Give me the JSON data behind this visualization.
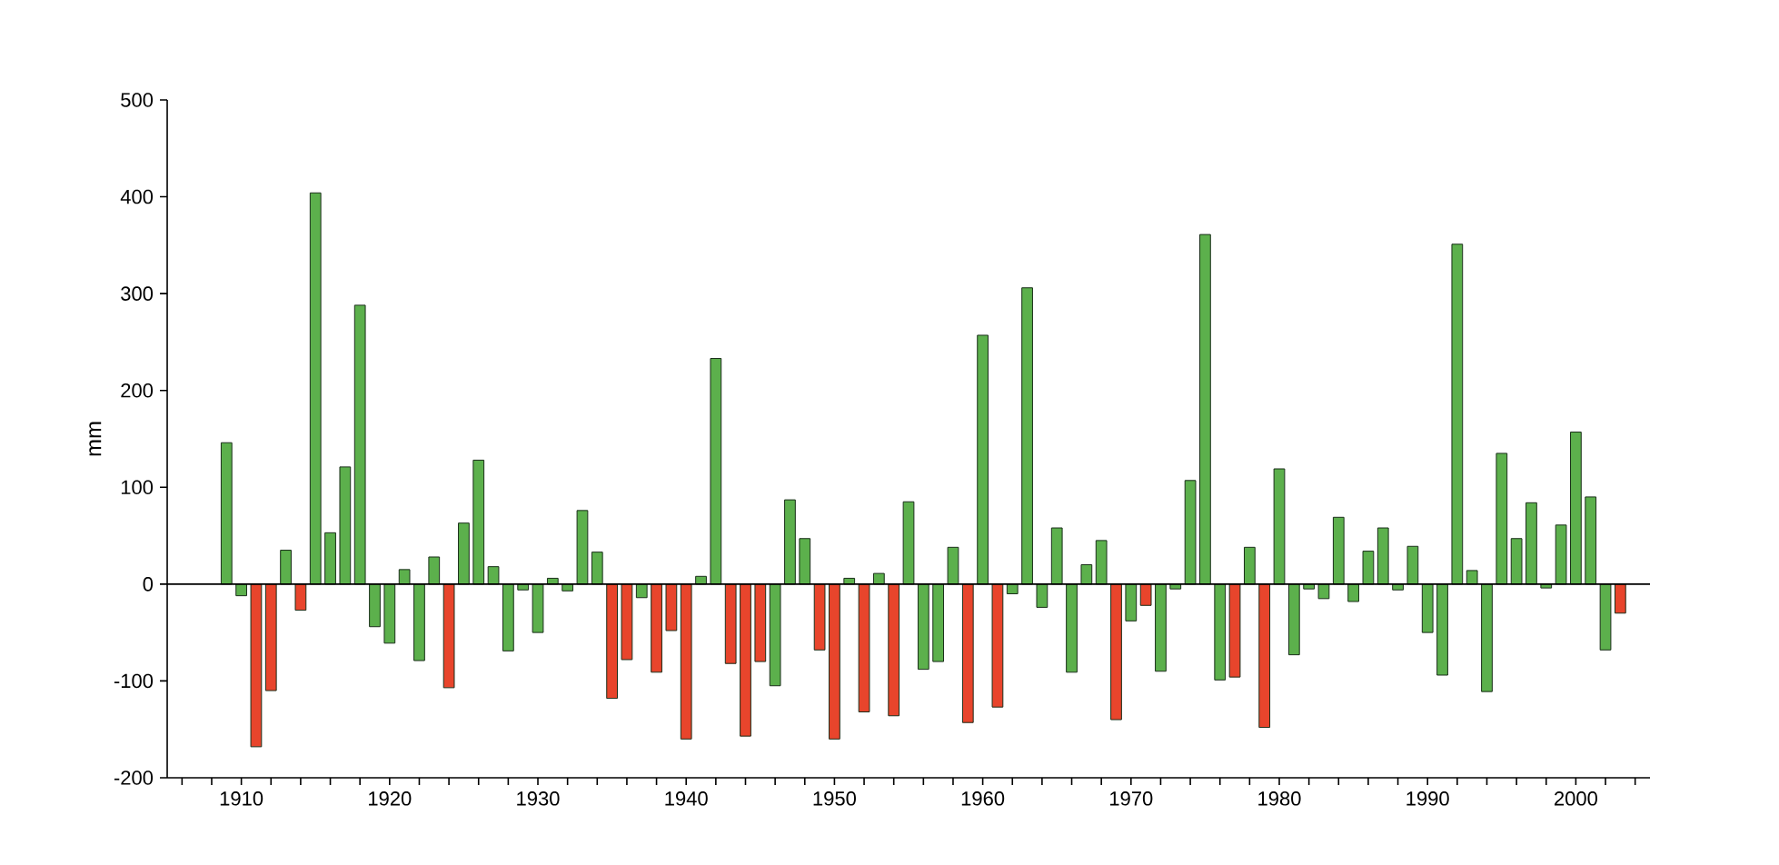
{
  "chart_data": {
    "type": "bar",
    "ylabel": "mm",
    "x": [
      1909,
      1910,
      1911,
      1912,
      1913,
      1914,
      1915,
      1916,
      1917,
      1918,
      1919,
      1920,
      1921,
      1922,
      1923,
      1924,
      1925,
      1926,
      1927,
      1928,
      1929,
      1930,
      1931,
      1932,
      1933,
      1934,
      1935,
      1936,
      1937,
      1938,
      1939,
      1940,
      1941,
      1942,
      1943,
      1944,
      1945,
      1946,
      1947,
      1948,
      1949,
      1950,
      1951,
      1952,
      1953,
      1954,
      1955,
      1956,
      1957,
      1958,
      1959,
      1960,
      1961,
      1962,
      1963,
      1964,
      1965,
      1966,
      1967,
      1968,
      1969,
      1970,
      1971,
      1972,
      1973,
      1974,
      1975,
      1976,
      1977,
      1978,
      1979,
      1980,
      1981,
      1982,
      1983,
      1984,
      1985,
      1986,
      1987,
      1988,
      1989,
      1990,
      1991,
      1992,
      1993,
      1994,
      1995,
      1996,
      1997,
      1998,
      1999,
      2000,
      2001,
      2002,
      2003
    ],
    "values": [
      146,
      -12,
      -168,
      -110,
      35,
      -27,
      404,
      53,
      121,
      288,
      -44,
      -61,
      15,
      -79,
      28,
      -107,
      63,
      128,
      18,
      -69,
      -6,
      -50,
      6,
      -7,
      76,
      33,
      -118,
      -78,
      -14,
      -91,
      -48,
      -160,
      8,
      233,
      -82,
      -157,
      -80,
      -105,
      87,
      47,
      -68,
      -160,
      6,
      -132,
      11,
      -136,
      85,
      -88,
      -80,
      38,
      -143,
      257,
      -127,
      -10,
      306,
      -24,
      58,
      -91,
      20,
      45,
      -140,
      -38,
      -22,
      -90,
      -5,
      107,
      361,
      -99,
      -96,
      38,
      -148,
      119,
      -73,
      -5,
      -15,
      69,
      -18,
      34,
      58,
      -6,
      39,
      -50,
      -94,
      351,
      14,
      -111,
      135,
      47,
      84,
      -4,
      61,
      157,
      90,
      -68,
      -30
    ],
    "colors": [
      "#5cb04c",
      "#5cb04c",
      "#e8452c",
      "#e8452c",
      "#5cb04c",
      "#e8452c",
      "#5cb04c",
      "#5cb04c",
      "#5cb04c",
      "#5cb04c",
      "#5cb04c",
      "#5cb04c",
      "#5cb04c",
      "#5cb04c",
      "#5cb04c",
      "#e8452c",
      "#5cb04c",
      "#5cb04c",
      "#5cb04c",
      "#5cb04c",
      "#5cb04c",
      "#5cb04c",
      "#5cb04c",
      "#5cb04c",
      "#5cb04c",
      "#5cb04c",
      "#e8452c",
      "#e8452c",
      "#5cb04c",
      "#e8452c",
      "#e8452c",
      "#e8452c",
      "#5cb04c",
      "#5cb04c",
      "#e8452c",
      "#e8452c",
      "#e8452c",
      "#5cb04c",
      "#5cb04c",
      "#5cb04c",
      "#e8452c",
      "#e8452c",
      "#5cb04c",
      "#e8452c",
      "#5cb04c",
      "#e8452c",
      "#5cb04c",
      "#5cb04c",
      "#5cb04c",
      "#5cb04c",
      "#e8452c",
      "#5cb04c",
      "#e8452c",
      "#5cb04c",
      "#5cb04c",
      "#5cb04c",
      "#5cb04c",
      "#5cb04c",
      "#5cb04c",
      "#5cb04c",
      "#e8452c",
      "#5cb04c",
      "#e8452c",
      "#5cb04c",
      "#5cb04c",
      "#5cb04c",
      "#5cb04c",
      "#5cb04c",
      "#e8452c",
      "#5cb04c",
      "#e8452c",
      "#5cb04c",
      "#5cb04c",
      "#5cb04c",
      "#5cb04c",
      "#5cb04c",
      "#5cb04c",
      "#5cb04c",
      "#5cb04c",
      "#5cb04c",
      "#5cb04c",
      "#5cb04c",
      "#5cb04c",
      "#5cb04c",
      "#5cb04c",
      "#5cb04c",
      "#5cb04c",
      "#5cb04c",
      "#5cb04c",
      "#5cb04c",
      "#5cb04c",
      "#5cb04c",
      "#5cb04c",
      "#5cb04c",
      "#e8452c"
    ],
    "xlim": [
      1905,
      2005
    ],
    "xticks": [
      {
        "value": 1906,
        "label": null
      },
      {
        "value": 1908,
        "label": null
      },
      1910,
      {
        "value": 1912,
        "label": null
      },
      {
        "value": 1914,
        "label": null
      },
      {
        "value": 1916,
        "label": null
      },
      {
        "value": 1918,
        "label": null
      },
      1920,
      {
        "value": 1922,
        "label": null
      },
      {
        "value": 1924,
        "label": null
      },
      {
        "value": 1926,
        "label": null
      },
      {
        "value": 1928,
        "label": null
      },
      1930,
      {
        "value": 1932,
        "label": null
      },
      {
        "value": 1934,
        "label": null
      },
      {
        "value": 1936,
        "label": null
      },
      {
        "value": 1938,
        "label": null
      },
      1940,
      {
        "value": 1942,
        "label": null
      },
      {
        "value": 1944,
        "label": null
      },
      {
        "value": 1946,
        "label": null
      },
      {
        "value": 1948,
        "label": null
      },
      1950,
      {
        "value": 1952,
        "label": null
      },
      {
        "value": 1954,
        "label": null
      },
      {
        "value": 1956,
        "label": null
      },
      {
        "value": 1958,
        "label": null
      },
      1960,
      {
        "value": 1962,
        "label": null
      },
      {
        "value": 1964,
        "label": null
      },
      {
        "value": 1966,
        "label": null
      },
      {
        "value": 1968,
        "label": null
      },
      1970,
      {
        "value": 1972,
        "label": null
      },
      {
        "value": 1974,
        "label": null
      },
      {
        "value": 1976,
        "label": null
      },
      {
        "value": 1978,
        "label": null
      },
      1980,
      {
        "value": 1982,
        "label": null
      },
      {
        "value": 1984,
        "label": null
      },
      {
        "value": 1986,
        "label": null
      },
      {
        "value": 1988,
        "label": null
      },
      1990,
      {
        "value": 1992,
        "label": null
      },
      {
        "value": 1994,
        "label": null
      },
      {
        "value": 1996,
        "label": null
      },
      {
        "value": 1998,
        "label": null
      },
      2000,
      {
        "value": 2002,
        "label": null
      },
      {
        "value": 2004,
        "label": null
      }
    ],
    "ylim": [
      -200,
      500
    ],
    "yticks": [
      -200,
      -100,
      0,
      100,
      200,
      300,
      400,
      500
    ],
    "ref_lines": [
      {
        "axis": "y",
        "value": 0,
        "color": "#000000"
      }
    ]
  }
}
